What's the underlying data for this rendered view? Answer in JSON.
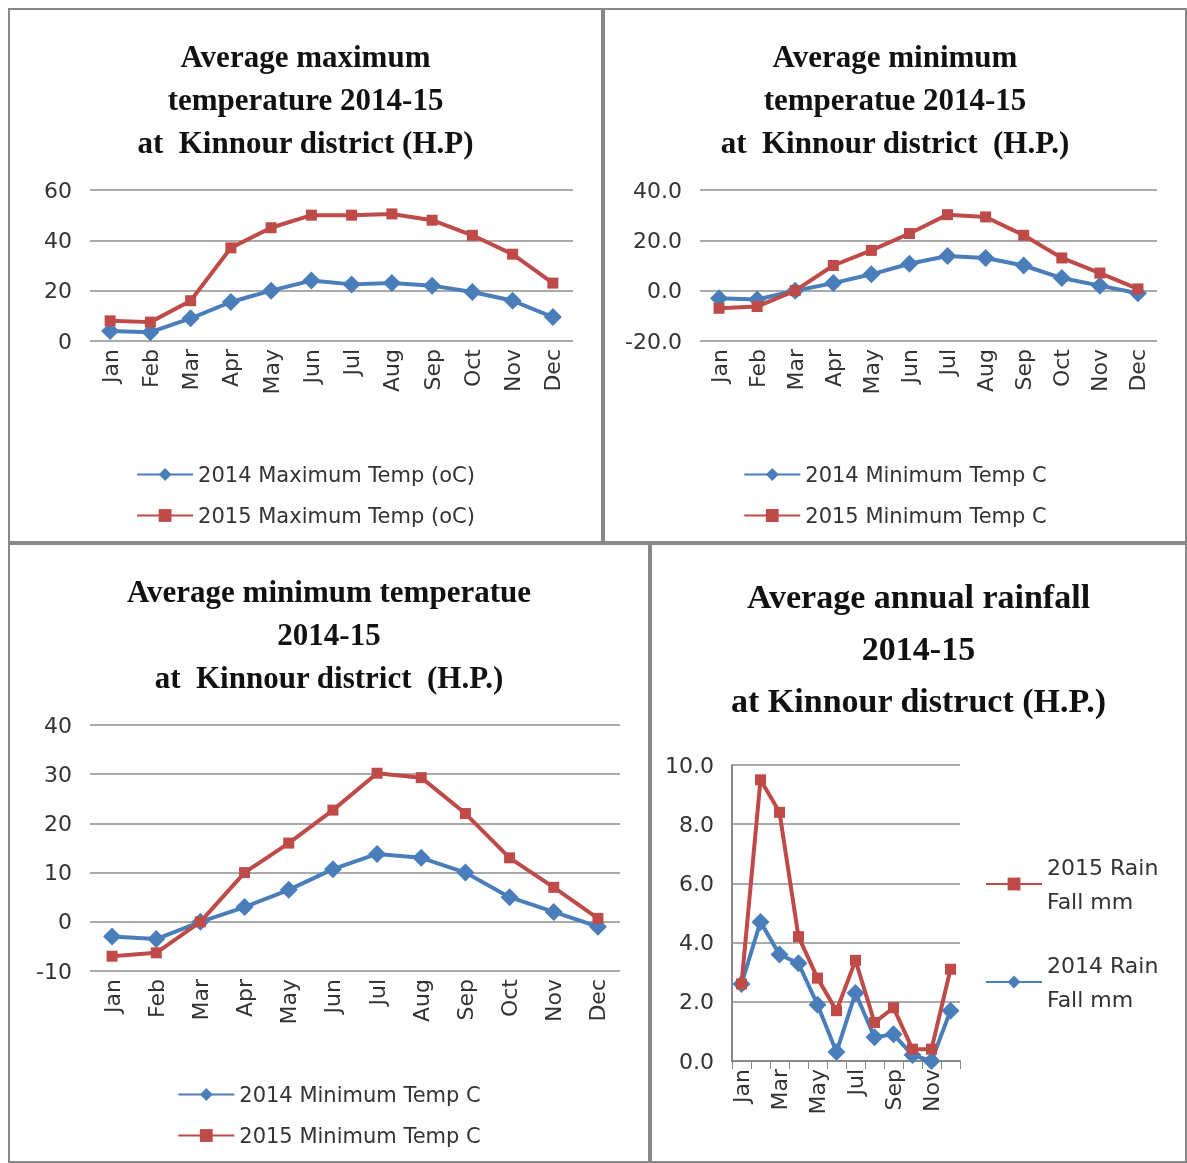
{
  "chart_data": [
    {
      "type": "line",
      "title": "Average maximum\ntemperature 2014-15\nat  Kinnour district (H.P)",
      "categories": [
        "Jan",
        "Feb",
        "Mar",
        "Apr",
        "May",
        "Jun",
        "Jul",
        "Aug",
        "Sep",
        "Oct",
        "Nov",
        "Dec"
      ],
      "series": [
        {
          "name": "2014 Maximum Temp (oC)",
          "color": "#4a7ebb",
          "marker": "diamond",
          "values": [
            4,
            3.5,
            9,
            15.5,
            20,
            24,
            22.5,
            23,
            22,
            19.5,
            16,
            9.5
          ]
        },
        {
          "name": "2015 Maximum Temp (oC)",
          "color": "#be4b48",
          "marker": "square",
          "values": [
            8,
            7.5,
            16,
            37,
            45,
            50,
            50,
            50.5,
            48,
            42,
            34.5,
            23
          ]
        }
      ],
      "ylim": [
        0,
        60
      ],
      "yticks": [
        0,
        20,
        40,
        60
      ],
      "grid": "y",
      "legend": "bottom",
      "line_style": "solid"
    },
    {
      "type": "line",
      "title": "Average minimum\ntemperatue 2014-15\nat  Kinnour district  (H.P.)",
      "categories": [
        "Jan",
        "Feb",
        "Mar",
        "Apr",
        "May",
        "Jun",
        "Jul",
        "Aug",
        "Sep",
        "Oct",
        "Nov",
        "Dec"
      ],
      "series": [
        {
          "name": "2014 Minimum Temp C",
          "color": "#4a7ebb",
          "marker": "diamond",
          "values": [
            -3,
            -3.5,
            0,
            3,
            6.5,
            10.7,
            13.8,
            13,
            10,
            5,
            2,
            -1
          ]
        },
        {
          "name": "2015 Minimum Temp C",
          "color": "#be4b48",
          "marker": "square",
          "values": [
            -7,
            -6.3,
            0,
            10,
            16,
            22.7,
            30.2,
            29.3,
            22,
            13,
            7,
            0.7
          ]
        }
      ],
      "ylim": [
        -20,
        40
      ],
      "yticks": [
        {
          "value": -20,
          "label": "-20.0"
        },
        {
          "value": 0,
          "label": "0.0"
        },
        {
          "value": 20,
          "label": "20.0"
        },
        {
          "value": 40,
          "label": "40.0"
        }
      ],
      "grid": "y",
      "legend": "bottom",
      "line_style": "solid"
    },
    {
      "type": "line",
      "title": "Average minimum temperatue\n2014-15\nat  Kinnour district  (H.P.)",
      "categories": [
        "Jan",
        "Feb",
        "Mar",
        "Apr",
        "May",
        "Jun",
        "Jul",
        "Aug",
        "Sep",
        "Oct",
        "Nov",
        "Dec"
      ],
      "series": [
        {
          "name": "2014 Minimum Temp C",
          "color": "#4a7ebb",
          "marker": "diamond",
          "values": [
            -3,
            -3.5,
            0,
            3,
            6.5,
            10.7,
            13.8,
            13,
            10,
            5,
            2,
            -1
          ]
        },
        {
          "name": "2015 Minimum Temp C",
          "color": "#be4b48",
          "marker": "square",
          "values": [
            -7,
            -6.3,
            0,
            10,
            16,
            22.7,
            30.2,
            29.3,
            22,
            13,
            7,
            0.7
          ]
        }
      ],
      "ylim": [
        -10,
        40
      ],
      "yticks": [
        -10,
        0,
        10,
        20,
        30,
        40
      ],
      "grid": "y",
      "legend": "bottom",
      "line_style": "solid"
    },
    {
      "type": "line",
      "title": "Average annual rainfall\n2014-15\nat Kinnour distruct (H.P.)",
      "categories": [
        "Jan",
        null,
        "Mar",
        null,
        "May",
        null,
        "Jul",
        null,
        "Sep",
        null,
        "Nov",
        null
      ],
      "series": [
        {
          "name": "2015 Rain Fall mm",
          "color": "#be4b48",
          "marker": "square",
          "values": [
            2.6,
            9.5,
            8.4,
            4.2,
            2.8,
            1.7,
            3.4,
            1.3,
            1.8,
            0.4,
            0.4,
            3.1
          ]
        },
        {
          "name": "2014 Rain Fall mm",
          "color": "#4a7ebb",
          "marker": "diamond",
          "values": [
            2.6,
            4.7,
            3.6,
            3.3,
            1.9,
            0.3,
            2.3,
            0.8,
            0.9,
            0.2,
            0,
            1.7
          ]
        }
      ],
      "ylim": [
        0,
        10
      ],
      "yticks": [
        {
          "value": 0,
          "label": "0.0"
        },
        {
          "value": 2,
          "label": "2.0"
        },
        {
          "value": 4,
          "label": "4.0"
        },
        {
          "value": 6,
          "label": "6.0"
        },
        {
          "value": 8,
          "label": "8.0"
        },
        {
          "value": 10,
          "label": "10.0"
        }
      ],
      "grid": "y",
      "legend": "right",
      "line_style": "solid"
    }
  ]
}
